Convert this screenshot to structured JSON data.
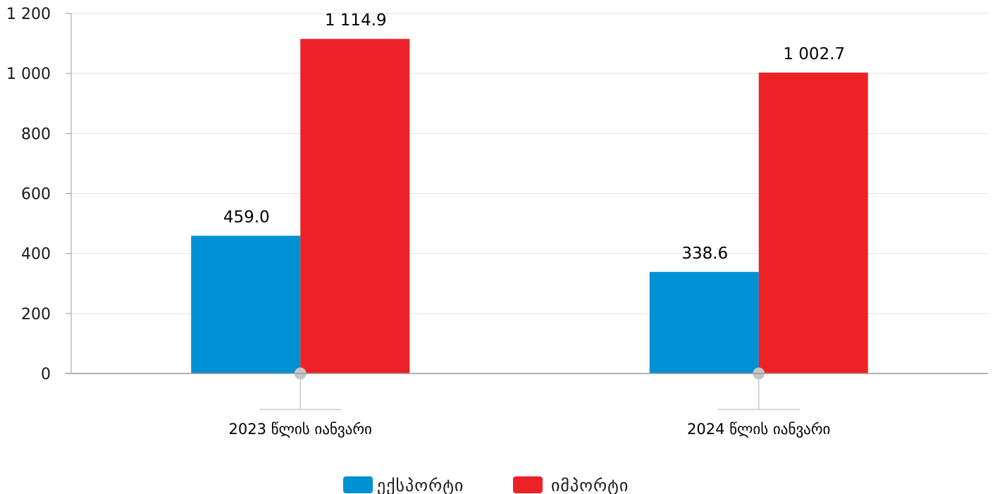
{
  "chart_data": {
    "type": "bar",
    "title": "",
    "xlabel": "",
    "ylabel": "",
    "categories": [
      "2023 წლის იანვარი",
      "2024 წლის იანვარი"
    ],
    "series": [
      {
        "name": "ექსპორტი",
        "values": [
          459.0,
          338.6
        ],
        "value_labels": [
          "459.0",
          "338.6"
        ],
        "color": "#0091d5"
      },
      {
        "name": "იმპორტი",
        "values": [
          1114.9,
          1002.7
        ],
        "value_labels": [
          "1 114.9",
          "1 002.7"
        ],
        "color": "#ec2226"
      }
    ],
    "ylim": [
      0,
      1200
    ],
    "yticks": [
      0,
      200,
      400,
      600,
      800,
      1000,
      1200
    ],
    "ytick_labels": [
      "0",
      "200",
      "400",
      "600",
      "800",
      "1 000",
      "1 200"
    ],
    "grid": true,
    "legend_position": "bottom-center"
  }
}
